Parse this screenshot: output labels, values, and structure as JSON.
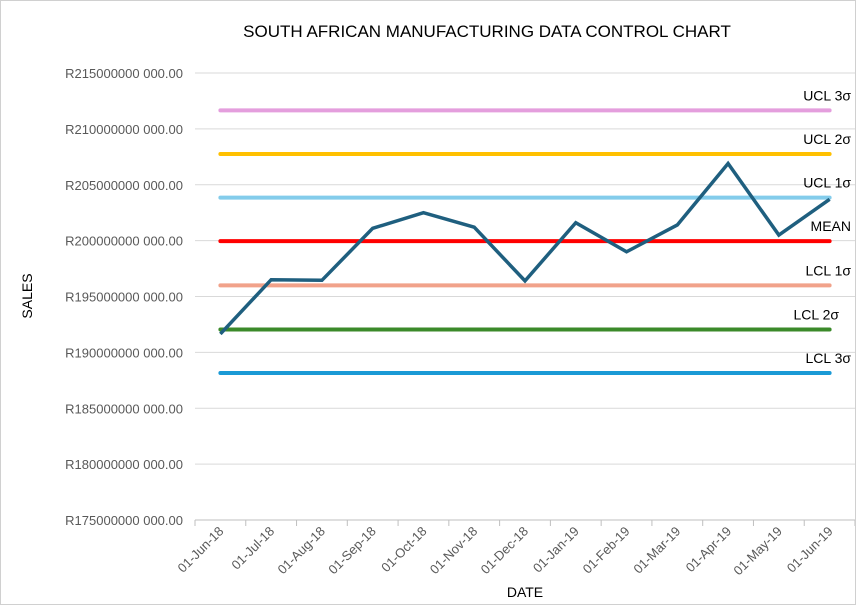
{
  "chart_data": {
    "type": "line",
    "title": "SOUTH AFRICAN MANUFACTURING DATA CONTROL CHART",
    "xlabel": "DATE",
    "ylabel": "SALES",
    "ylim": [
      175000000000,
      215000000000
    ],
    "yticks": [
      175000000000,
      180000000000,
      185000000000,
      190000000000,
      195000000000,
      200000000000,
      205000000000,
      210000000000,
      215000000000
    ],
    "ytick_labels": [
      "R175000000 000.00",
      "R180000000 000.00",
      "R185000000 000.00",
      "R190000000 000.00",
      "R195000000 000.00",
      "R200000000 000.00",
      "R205000000 000.00",
      "R210000000 000.00",
      "R215000000 000.00"
    ],
    "grid": true,
    "categories": [
      "01-Jun-18",
      "01-Jul-18",
      "01-Aug-18",
      "01-Sep-18",
      "01-Oct-18",
      "01-Nov-18",
      "01-Dec-18",
      "01-Jan-19",
      "01-Feb-19",
      "01-Mar-19",
      "01-Apr-19",
      "01-May-19",
      "01-Jun-19"
    ],
    "series": [
      {
        "values": [
          191650000000,
          196500000000,
          196450000000,
          201100000000,
          202500000000,
          201200000000,
          196400000000,
          201600000000,
          199000000000,
          201400000000,
          206900000000,
          200500000000,
          203700000000
        ],
        "color": "#1f5f7f"
      }
    ],
    "control_lines": [
      {
        "name": "UCL 3σ",
        "value": 211650000000,
        "color": "#e49edd"
      },
      {
        "name": "UCL 2σ",
        "value": 207750000000,
        "color": "#ffc000"
      },
      {
        "name": "UCL 1σ",
        "value": 203850000000,
        "color": "#83cceb"
      },
      {
        "name": "MEAN",
        "value": 199950000000,
        "color": "#ff0000"
      },
      {
        "name": "LCL 1σ",
        "value": 196000000000,
        "color": "#f1a28a"
      },
      {
        "name": "LCL 2σ",
        "value": 192050000000,
        "color": "#3b8a2a"
      },
      {
        "name": "LCL 3σ",
        "value": 188150000000,
        "color": "#1a9ad6"
      }
    ]
  }
}
